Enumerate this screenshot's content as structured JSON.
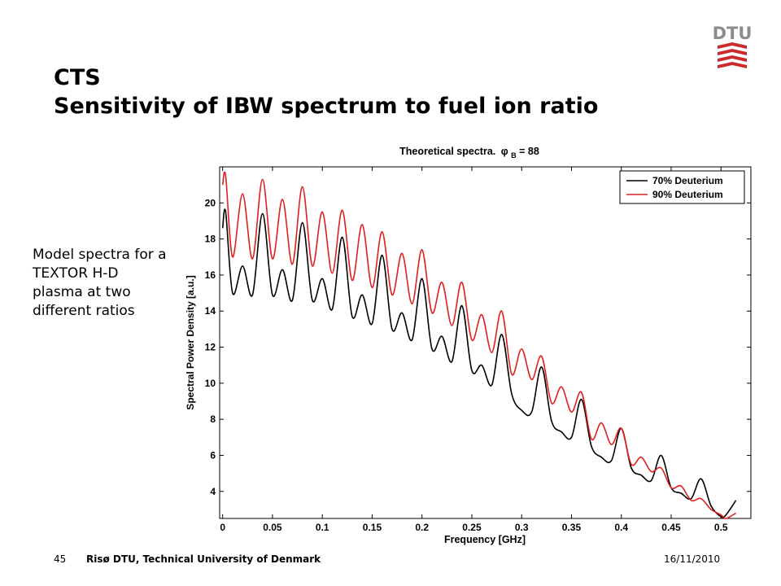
{
  "slide": {
    "title_line1": "CTS",
    "title_line2": "Sensitivity of IBW spectrum to fuel ion ratio",
    "side_note": "Model spectra for a TEXTOR H-D plasma at two different ratios",
    "page_number": "45",
    "organization": "Risø DTU, Technical University of Denmark",
    "date": "16/11/2010",
    "logo_text": "DTU",
    "colors": {
      "logo_red": "#cc2a2a",
      "logo_gray": "#8c8c8c"
    }
  },
  "chart_data": {
    "type": "line",
    "title": "Theoretical spectra.",
    "title_symbol": "φ",
    "title_subscript": "B",
    "title_suffix": " = 88",
    "xlabel": "Frequency [GHz]",
    "ylabel": "Spectral Power Density [a.u.]",
    "xlim": [
      -0.003,
      0.53
    ],
    "ylim": [
      2.5,
      22
    ],
    "xticks": [
      0,
      0.05,
      0.1,
      0.15,
      0.2,
      0.25,
      0.3,
      0.35,
      0.4,
      0.45,
      0.5
    ],
    "xtick_labels": [
      "0",
      "0.05",
      "0.1",
      "0.15",
      "0.2",
      "0.25",
      "0.3",
      "0.35",
      "0.4",
      "0.45",
      "0.5"
    ],
    "yticks": [
      4,
      6,
      8,
      10,
      12,
      14,
      16,
      18,
      20
    ],
    "ytick_labels": [
      "4",
      "6",
      "8",
      "10",
      "12",
      "14",
      "16",
      "18",
      "20"
    ],
    "grid": false,
    "legend_position": "top-right",
    "series": [
      {
        "name": "70% Deuterium",
        "color": "#000000",
        "x": [
          0,
          0.003,
          0.01,
          0.02,
          0.03,
          0.04,
          0.05,
          0.06,
          0.07,
          0.08,
          0.09,
          0.1,
          0.11,
          0.12,
          0.13,
          0.14,
          0.15,
          0.16,
          0.17,
          0.18,
          0.19,
          0.2,
          0.21,
          0.22,
          0.23,
          0.24,
          0.25,
          0.26,
          0.27,
          0.28,
          0.29,
          0.3,
          0.31,
          0.32,
          0.33,
          0.34,
          0.35,
          0.36,
          0.37,
          0.38,
          0.39,
          0.4,
          0.41,
          0.42,
          0.43,
          0.44,
          0.45,
          0.46,
          0.47,
          0.48,
          0.49,
          0.5,
          0.505,
          0.515
        ],
        "y": [
          18.6,
          19.5,
          15.0,
          16.5,
          14.9,
          19.4,
          14.9,
          16.3,
          14.6,
          18.9,
          14.6,
          15.8,
          14.1,
          18.1,
          13.7,
          14.9,
          13.3,
          17.1,
          13.0,
          13.9,
          12.4,
          15.8,
          11.9,
          12.6,
          11.2,
          14.3,
          10.7,
          11.0,
          9.9,
          12.7,
          9.4,
          8.5,
          8.4,
          10.9,
          7.9,
          7.3,
          7.0,
          9.1,
          6.5,
          5.9,
          5.7,
          7.5,
          5.3,
          4.9,
          4.6,
          6.0,
          4.2,
          3.9,
          3.6,
          4.7,
          3.2,
          2.6,
          2.7,
          3.5
        ]
      },
      {
        "name": "90% Deuterium",
        "color": "#e02020",
        "x": [
          0,
          0.003,
          0.01,
          0.02,
          0.03,
          0.04,
          0.05,
          0.06,
          0.07,
          0.08,
          0.09,
          0.1,
          0.11,
          0.12,
          0.13,
          0.14,
          0.15,
          0.16,
          0.17,
          0.18,
          0.19,
          0.2,
          0.21,
          0.22,
          0.23,
          0.24,
          0.25,
          0.26,
          0.27,
          0.28,
          0.29,
          0.3,
          0.31,
          0.32,
          0.33,
          0.34,
          0.35,
          0.36,
          0.37,
          0.38,
          0.39,
          0.4,
          0.41,
          0.42,
          0.43,
          0.44,
          0.45,
          0.46,
          0.47,
          0.48,
          0.49,
          0.5,
          0.505,
          0.515
        ],
        "y": [
          21.0,
          21.5,
          17.0,
          20.5,
          16.9,
          21.3,
          16.9,
          20.2,
          16.6,
          20.9,
          16.5,
          19.5,
          16.1,
          19.6,
          15.7,
          18.8,
          15.3,
          18.4,
          14.9,
          17.2,
          14.4,
          17.4,
          13.9,
          15.6,
          13.2,
          15.6,
          12.4,
          13.8,
          11.7,
          14.0,
          10.5,
          11.9,
          10.2,
          11.5,
          8.9,
          9.8,
          8.4,
          9.5,
          6.9,
          7.8,
          6.6,
          7.5,
          5.5,
          5.9,
          5.1,
          5.3,
          4.2,
          4.3,
          3.5,
          3.6,
          3.0,
          2.7,
          2.5,
          2.8
        ]
      }
    ]
  }
}
